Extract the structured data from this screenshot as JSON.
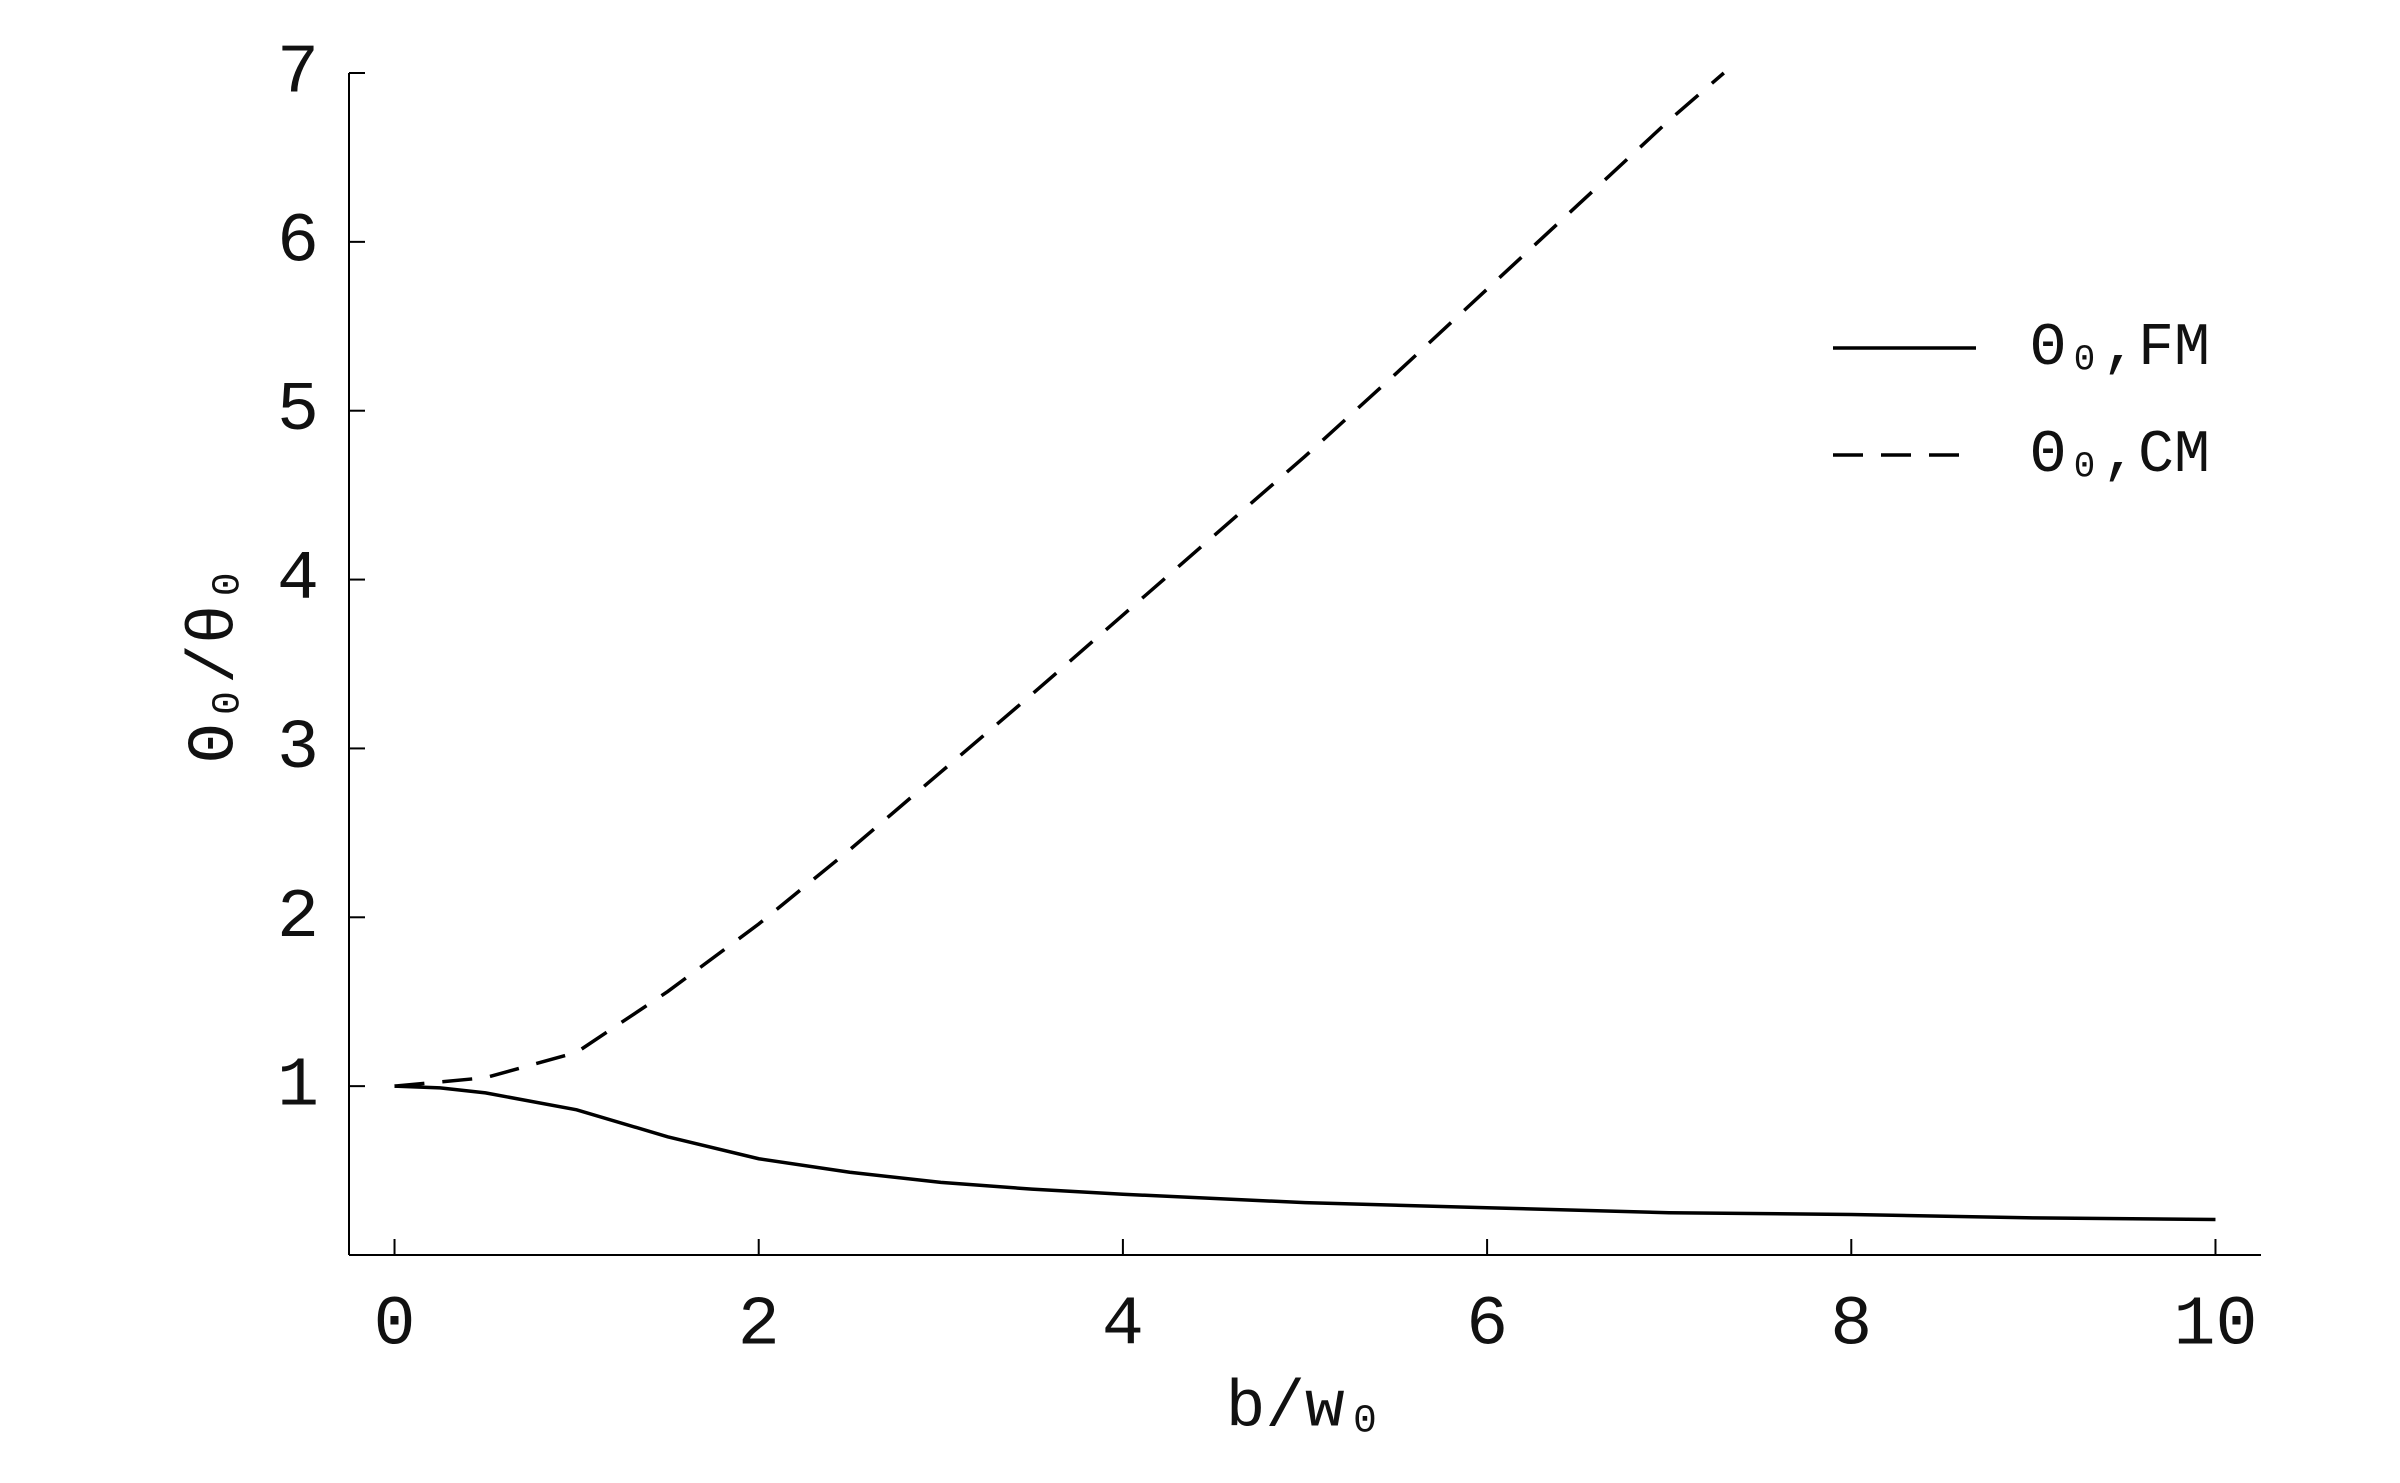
{
  "chart_data": {
    "type": "line",
    "x_label": "b/w₀",
    "y_label": "Θ₀/θ₀",
    "xlim": [
      -0.25,
      10.25
    ],
    "xticks": [
      0,
      2,
      4,
      6,
      8,
      10
    ],
    "ylim": [
      0,
      7
    ],
    "yticks": [
      1,
      2,
      3,
      4,
      5,
      6,
      7
    ],
    "legend": "upper right",
    "series": [
      {
        "name": "Θ₀,FM",
        "color": "#000000",
        "dash": "solid",
        "x": [
          0,
          0.25,
          0.5,
          1,
          1.5,
          2,
          2.5,
          3,
          3.5,
          4,
          5,
          6,
          7,
          8,
          9,
          10
        ],
        "values": [
          1,
          0.99,
          0.96,
          0.86,
          0.7,
          0.57,
          0.49,
          0.43,
          0.39,
          0.36,
          0.31,
          0.28,
          0.25,
          0.24,
          0.22,
          0.21
        ]
      },
      {
        "name": "Θ₀,CM",
        "color": "#000000",
        "dash": "dashed",
        "x": [
          0,
          0.5,
          1,
          1.5,
          2,
          2.5,
          3,
          3.5,
          4,
          4.5,
          5,
          5.5,
          6,
          6.5,
          7,
          7.3
        ],
        "values": [
          1,
          1.05,
          1.2,
          1.56,
          1.96,
          2.4,
          2.86,
          3.32,
          3.79,
          4.26,
          4.73,
          5.22,
          5.72,
          6.22,
          6.72,
          7.0
        ]
      }
    ]
  }
}
